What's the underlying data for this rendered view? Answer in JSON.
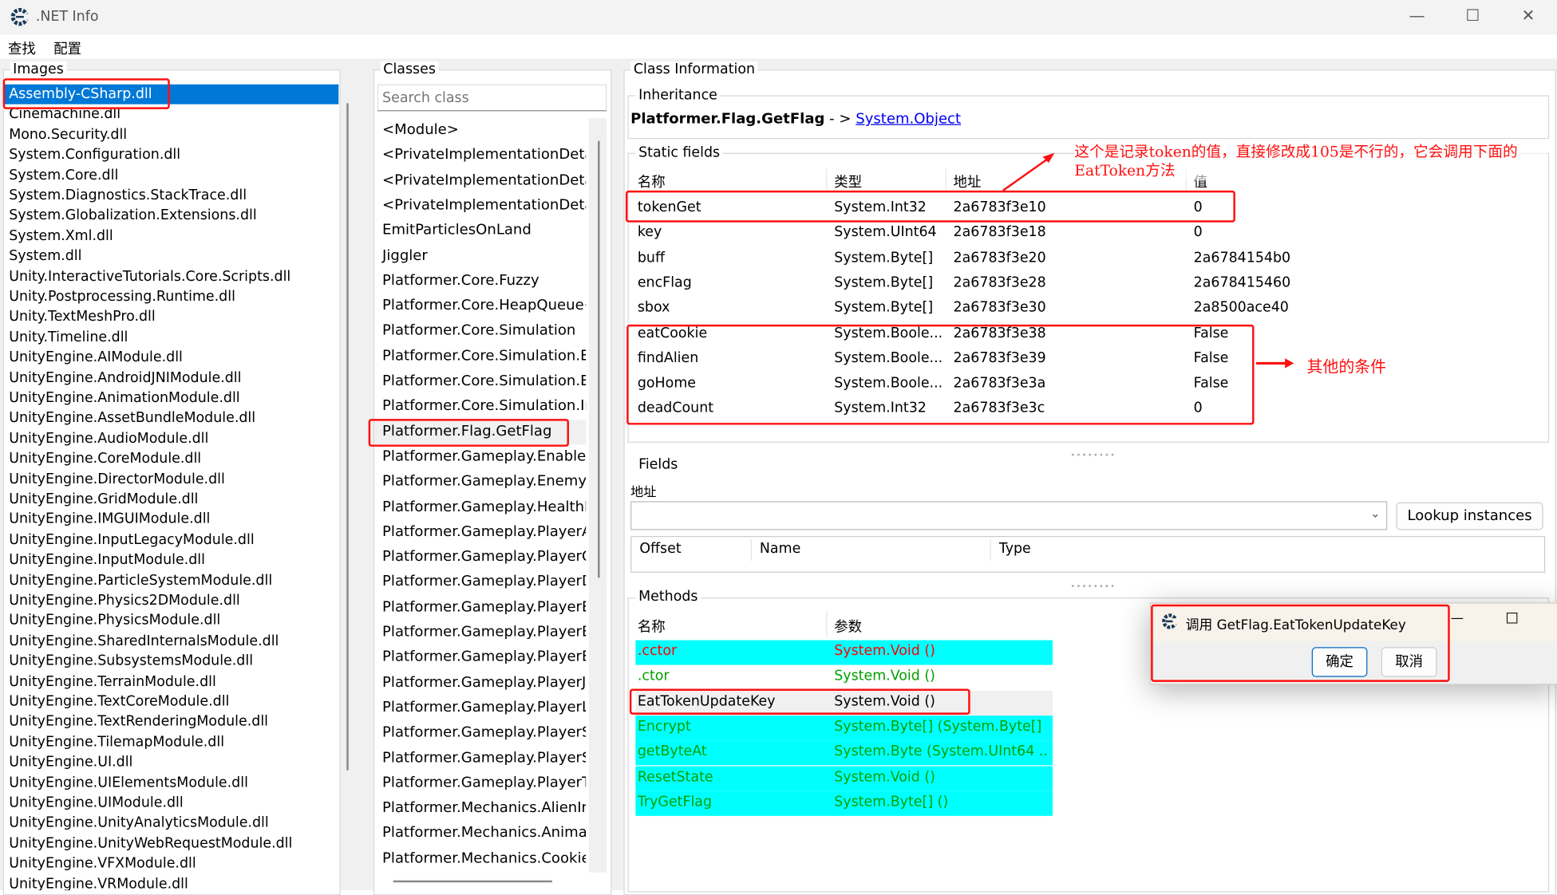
{
  "window": {
    "title": ".NET Info",
    "minimize": "—",
    "maximize": "☐",
    "close": "✕"
  },
  "menu": [
    "查找",
    "配置"
  ],
  "images": {
    "label": "Images",
    "items": [
      "Assembly-CSharp.dll",
      "Cinemachine.dll",
      "Mono.Security.dll",
      "System.Configuration.dll",
      "System.Core.dll",
      "System.Diagnostics.StackTrace.dll",
      "System.Globalization.Extensions.dll",
      "System.Xml.dll",
      "System.dll",
      "Unity.InteractiveTutorials.Core.Scripts.dll",
      "Unity.Postprocessing.Runtime.dll",
      "Unity.TextMeshPro.dll",
      "Unity.Timeline.dll",
      "UnityEngine.AIModule.dll",
      "UnityEngine.AndroidJNIModule.dll",
      "UnityEngine.AnimationModule.dll",
      "UnityEngine.AssetBundleModule.dll",
      "UnityEngine.AudioModule.dll",
      "UnityEngine.CoreModule.dll",
      "UnityEngine.DirectorModule.dll",
      "UnityEngine.GridModule.dll",
      "UnityEngine.IMGUIModule.dll",
      "UnityEngine.InputLegacyModule.dll",
      "UnityEngine.InputModule.dll",
      "UnityEngine.ParticleSystemModule.dll",
      "UnityEngine.Physics2DModule.dll",
      "UnityEngine.PhysicsModule.dll",
      "UnityEngine.SharedInternalsModule.dll",
      "UnityEngine.SubsystemsModule.dll",
      "UnityEngine.TerrainModule.dll",
      "UnityEngine.TextCoreModule.dll",
      "UnityEngine.TextRenderingModule.dll",
      "UnityEngine.TilemapModule.dll",
      "UnityEngine.UI.dll",
      "UnityEngine.UIElementsModule.dll",
      "UnityEngine.UIModule.dll",
      "UnityEngine.UnityAnalyticsModule.dll",
      "UnityEngine.UnityWebRequestModule.dll",
      "UnityEngine.VFXModule.dll",
      "UnityEngine.VRModule.dll"
    ],
    "selected": 0
  },
  "classes": {
    "label": "Classes",
    "search_placeholder": "Search class",
    "items": [
      "<Module>",
      "<PrivateImplementationDetails",
      "<PrivateImplementationDetails",
      "<PrivateImplementationDetails",
      "EmitParticlesOnLand",
      "Jiggler",
      "Platformer.Core.Fuzzy",
      "Platformer.Core.HeapQueue<",
      "Platformer.Core.Simulation",
      "Platformer.Core.Simulation.Ev",
      "Platformer.Core.Simulation.Ev",
      "Platformer.Core.Simulation.Ins",
      "Platformer.Flag.GetFlag",
      "Platformer.Gameplay.EnablePl",
      "Platformer.Gameplay.EnemyD",
      "Platformer.Gameplay.HealthIs",
      "Platformer.Gameplay.PlayerAli",
      "Platformer.Gameplay.PlayerCo",
      "Platformer.Gameplay.PlayerDe",
      "Platformer.Gameplay.PlayerEn",
      "Platformer.Gameplay.PlayerEn",
      "Platformer.Gameplay.PlayerEn",
      "Platformer.Gameplay.PlayerJu",
      "Platformer.Gameplay.PlayerLa",
      "Platformer.Gameplay.PlayerSp",
      "Platformer.Gameplay.PlayerSt",
      "Platformer.Gameplay.PlayerTo",
      "Platformer.Mechanics.AlienIns",
      "Platformer.Mechanics.Animati",
      "Platformer.Mechanics.CookieI"
    ],
    "selected": 12
  },
  "class_info": {
    "label": "Class Information",
    "inheritance": {
      "label": "Inheritance",
      "class_name": "Platformer.Flag.GetFlag",
      "arrow": " - > ",
      "base": "System.Object"
    },
    "static_fields": {
      "label": "Static fields",
      "headers": [
        "名称",
        "类型",
        "地址",
        "值"
      ],
      "rows": [
        [
          "tokenGet",
          "System.Int32",
          "2a6783f3e10",
          "0"
        ],
        [
          "key",
          "System.UInt64",
          "2a6783f3e18",
          "0"
        ],
        [
          "buff",
          "System.Byte[]",
          "2a6783f3e20",
          "2a6784154b0"
        ],
        [
          "encFlag",
          "System.Byte[]",
          "2a6783f3e28",
          "2a678415460"
        ],
        [
          "sbox",
          "System.Byte[]",
          "2a6783f3e30",
          "2a8500ace40"
        ],
        [
          "eatCookie",
          "System.Boole...",
          "2a6783f3e38",
          "False"
        ],
        [
          "findAlien",
          "System.Boole...",
          "2a6783f3e39",
          "False"
        ],
        [
          "goHome",
          "System.Boole...",
          "2a6783f3e3a",
          "False"
        ],
        [
          "deadCount",
          "System.Int32",
          "2a6783f3e3c",
          "0"
        ]
      ]
    },
    "fields": {
      "label": "Fields",
      "address_label": "地址",
      "address_value": "",
      "lookup_button": "Lookup instances",
      "headers": [
        "Offset",
        "Name",
        "Type"
      ]
    },
    "methods": {
      "label": "Methods",
      "headers": [
        "名称",
        "参数"
      ],
      "rows": [
        {
          "name": ".cctor",
          "params": "System.Void ()",
          "bg": "#00ffff",
          "color": "#ff0000"
        },
        {
          "name": ".ctor",
          "params": "System.Void ()",
          "bg": "#ffffff",
          "color": "#00a000"
        },
        {
          "name": "EatTokenUpdateKey",
          "params": "System.Void ()",
          "bg": "#f0f0f0",
          "color": "#000000"
        },
        {
          "name": "Encrypt",
          "params": "System.Byte[] (System.Byte[] ...",
          "bg": "#00ffff",
          "color": "#00a000"
        },
        {
          "name": "getByteAt",
          "params": "System.Byte (System.UInt64 ...",
          "bg": "#00ffff",
          "color": "#00a000"
        },
        {
          "name": "ResetState",
          "params": "System.Void ()",
          "bg": "#00ffff",
          "color": "#00a000"
        },
        {
          "name": "TryGetFlag",
          "params": "System.Byte[] ()",
          "bg": "#00ffff",
          "color": "#00a000"
        }
      ]
    }
  },
  "dialog": {
    "title": "调用 GetFlag.EatTokenUpdateKey",
    "ok": "确定",
    "cancel": "取消",
    "minimize": "—",
    "maximize": "☐"
  },
  "annotations": {
    "token_note": "这个是记录token的值，直接修改成105是不行的，它会调用下面的EatToken方法",
    "other_note": "其他的条件",
    "color": "#ff1010"
  }
}
